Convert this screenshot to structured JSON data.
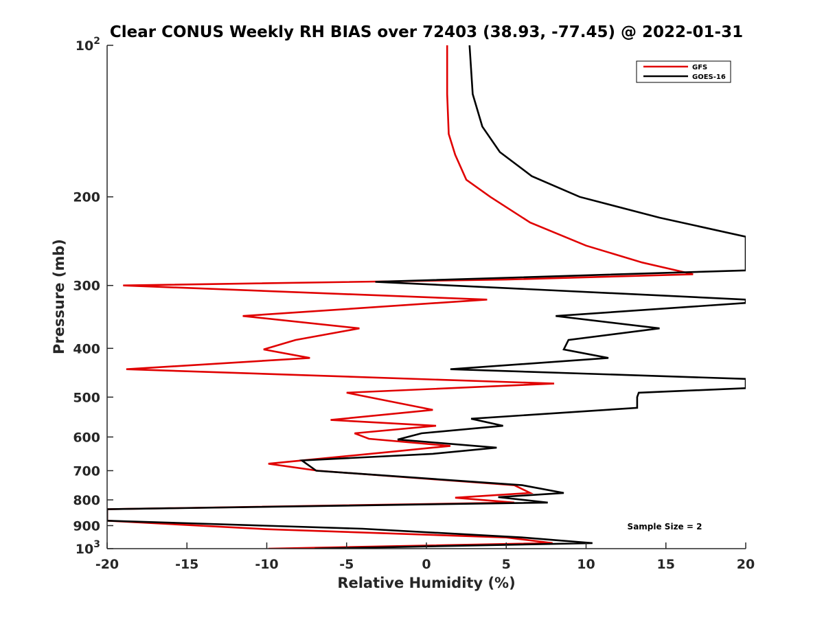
{
  "chart_data": {
    "type": "line",
    "title": "Clear CONUS Weekly RH BIAS over 72403 (38.93, -77.45) @ 2022-01-31",
    "xlabel": "Relative Humidity (%)",
    "ylabel": "Pressure (mb)",
    "xlim": [
      -20,
      20
    ],
    "ylim": [
      100,
      1000
    ],
    "y_scale": "log",
    "y_reversed": true,
    "grid": false,
    "legend_position": "top-right",
    "x_ticks": [
      "-20",
      "-15",
      "-10",
      "-5",
      "0",
      "5",
      "10",
      "15",
      "20"
    ],
    "y_ticks": [
      {
        "value": 100,
        "base": "10",
        "sup": "2"
      },
      {
        "value": 200,
        "base": "200",
        "sup": ""
      },
      {
        "value": 300,
        "base": "300",
        "sup": ""
      },
      {
        "value": 400,
        "base": "400",
        "sup": ""
      },
      {
        "value": 500,
        "base": "500",
        "sup": ""
      },
      {
        "value": 600,
        "base": "600",
        "sup": ""
      },
      {
        "value": 700,
        "base": "700",
        "sup": ""
      },
      {
        "value": 800,
        "base": "800",
        "sup": ""
      },
      {
        "value": 900,
        "base": "900",
        "sup": ""
      },
      {
        "value": 1000,
        "base": "10",
        "sup": "3"
      }
    ],
    "series": [
      {
        "name": "GFS",
        "color": "#e00000",
        "points": [
          [
            1.3,
            100
          ],
          [
            1.3,
            125
          ],
          [
            1.4,
            150
          ],
          [
            1.8,
            165
          ],
          [
            2.5,
            185
          ],
          [
            4.0,
            200
          ],
          [
            6.5,
            225
          ],
          [
            10,
            250
          ],
          [
            13.5,
            270
          ],
          [
            16.7,
            285
          ],
          [
            5,
            292
          ],
          [
            -19,
            300
          ],
          [
            3.8,
            320
          ],
          [
            -11.5,
            345
          ],
          [
            -4.2,
            365
          ],
          [
            -8.2,
            385
          ],
          [
            -10.2,
            402
          ],
          [
            -7.3,
            418
          ],
          [
            -18.8,
            440
          ],
          [
            8,
            470
          ],
          [
            -5,
            490
          ],
          [
            0.4,
            530
          ],
          [
            -6,
            555
          ],
          [
            0.6,
            570
          ],
          [
            -4.5,
            590
          ],
          [
            -3.6,
            605
          ],
          [
            1.5,
            625
          ],
          [
            -2.2,
            642
          ],
          [
            -9.9,
            678
          ],
          [
            -6.8,
            700
          ],
          [
            5.5,
            748
          ],
          [
            6.5,
            775
          ],
          [
            1.8,
            792
          ],
          [
            5.5,
            810
          ],
          [
            -20,
            835
          ],
          [
            -20,
            880
          ],
          [
            -10,
            915
          ],
          [
            5,
            950
          ],
          [
            7.9,
            975
          ],
          [
            -9.9,
            1000
          ]
        ]
      },
      {
        "name": "GOES-16",
        "color": "#000000",
        "points": [
          [
            2.7,
            100
          ],
          [
            2.9,
            125
          ],
          [
            3.5,
            145
          ],
          [
            4.6,
            163
          ],
          [
            6.6,
            182
          ],
          [
            9.6,
            200
          ],
          [
            14.6,
            220
          ],
          [
            20,
            240
          ],
          [
            20,
            280
          ],
          [
            -3.2,
            295
          ],
          [
            20,
            320
          ],
          [
            20,
            325
          ],
          [
            8.1,
            345
          ],
          [
            14.6,
            365
          ],
          [
            8.9,
            385
          ],
          [
            8.6,
            402
          ],
          [
            11.4,
            418
          ],
          [
            1.5,
            440
          ],
          [
            20,
            460
          ],
          [
            20,
            480
          ],
          [
            13.3,
            490
          ],
          [
            13.2,
            500
          ],
          [
            13.2,
            525
          ],
          [
            2.8,
            552
          ],
          [
            4.8,
            570
          ],
          [
            -0.3,
            590
          ],
          [
            -1.8,
            607
          ],
          [
            4.4,
            630
          ],
          [
            0.4,
            648
          ],
          [
            -7.8,
            668
          ],
          [
            -6.9,
            700
          ],
          [
            6,
            748
          ],
          [
            8.6,
            775
          ],
          [
            4.5,
            790
          ],
          [
            7.6,
            810
          ],
          [
            -20,
            835
          ],
          [
            -20,
            880
          ],
          [
            -4,
            913
          ],
          [
            6,
            950
          ],
          [
            10.4,
            975
          ],
          [
            -7,
            1000
          ]
        ]
      }
    ],
    "annotations": [
      "Sample Size = 2"
    ]
  }
}
